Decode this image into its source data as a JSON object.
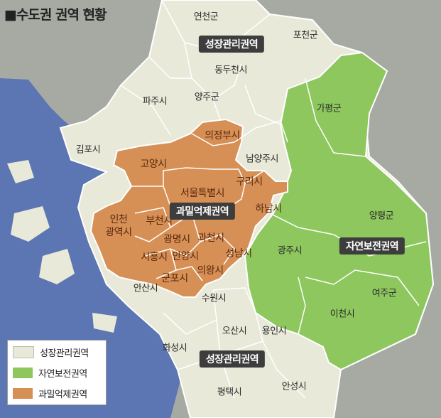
{
  "title": "■수도권 권역 현황",
  "colors": {
    "sea": "#5b76b2",
    "land_outside": "#a7aaa2",
    "growth": "#e9e9d9",
    "conservation": "#8dc75e",
    "overconcentration": "#d68f55",
    "boundary": "#ffffff"
  },
  "zones": {
    "growth_north": "성장관리권역",
    "growth_south": "성장관리권역",
    "overconcentration": "과밀억제권역",
    "conservation": "자연보전권역"
  },
  "places": {
    "yeoncheon": "연천군",
    "pocheon": "포천군",
    "dongducheon": "동두천시",
    "paju": "파주시",
    "yangju": "양주군",
    "gapyeong": "가평군",
    "uijeongbu": "의정부시",
    "gimpo": "김포시",
    "goyang": "고양시",
    "namyangju": "남양주시",
    "guri": "구리시",
    "seoul": "서울특별시",
    "hanam": "하남시",
    "yangpyeong": "양평군",
    "incheon": "인천\n광역시",
    "bucheon": "부천시",
    "gwangmyeong": "광명시",
    "gwacheon": "과천시",
    "siheung": "시흥시",
    "anyang": "안양시",
    "seongnam": "성남시",
    "gwangju": "광주시",
    "gunpo": "군포시",
    "uiwang": "의왕시",
    "ansan": "안산시",
    "suwon": "수원시",
    "yeoju": "여주군",
    "icheon": "이천시",
    "osan": "오산시",
    "yongin": "용인시",
    "hwaseong": "화성시",
    "pyeongtaek": "평택시",
    "anseong": "안성시"
  },
  "legend": [
    {
      "label": "성장관리권역",
      "color": "#e9e9d9"
    },
    {
      "label": "자연보전권역",
      "color": "#8dc75e"
    },
    {
      "label": "과밀억제권역",
      "color": "#d68f55"
    }
  ]
}
